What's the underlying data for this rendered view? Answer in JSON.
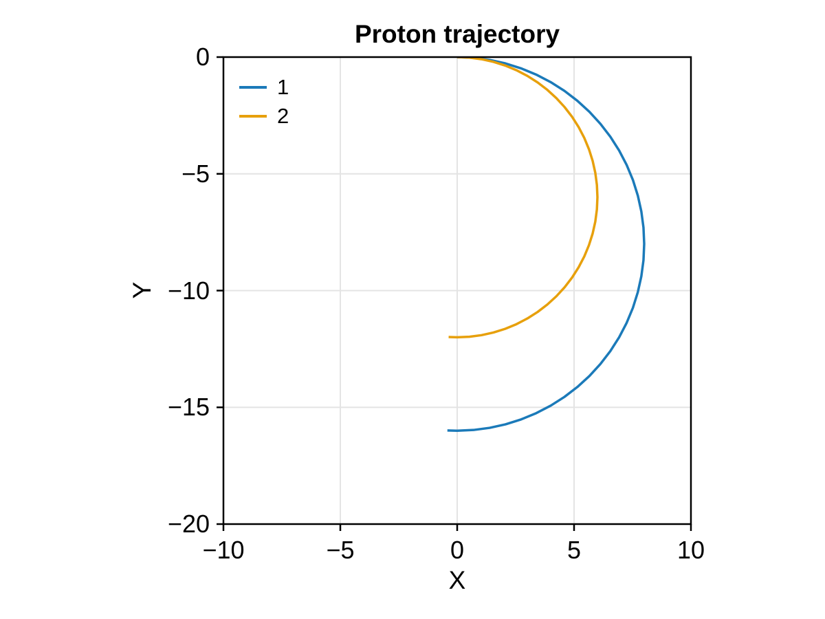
{
  "chart_data": {
    "type": "line",
    "title": "Proton trajectory",
    "xlabel": "X",
    "ylabel": "Y",
    "xlim": [
      -10,
      10
    ],
    "ylim": [
      -20,
      0
    ],
    "x_ticks": [
      -10,
      -5,
      0,
      5,
      10
    ],
    "x_tick_labels": [
      "−10",
      "−5",
      "0",
      "5",
      "10"
    ],
    "y_ticks": [
      0,
      -5,
      -10,
      -15,
      -20
    ],
    "y_tick_labels": [
      "0",
      "−5",
      "−10",
      "−15",
      "−20"
    ],
    "grid": true,
    "grid_color": "#e4e4e4",
    "frame_color": "#000000",
    "background_color": "#ffffff",
    "legend_position": "top-left-inside",
    "legend_frame": false,
    "series": [
      {
        "name": "1",
        "color": "#1b7ab9",
        "shape": "circular arc, radius 8, center (0,-8), starts at (0,0) moving +x, curves clockwise through (8,-8) to (0,-16), slightly overshooting past half turn",
        "points": [
          [
            0,
            0
          ],
          [
            0.698,
            -0.03
          ],
          [
            1.389,
            -0.122
          ],
          [
            2.071,
            -0.273
          ],
          [
            2.736,
            -0.483
          ],
          [
            3.381,
            -0.75
          ],
          [
            4,
            -1.072
          ],
          [
            4.589,
            -1.447
          ],
          [
            5.142,
            -1.872
          ],
          [
            5.657,
            -2.343
          ],
          [
            6.128,
            -2.858
          ],
          [
            6.553,
            -3.411
          ],
          [
            6.928,
            -4
          ],
          [
            7.25,
            -4.619
          ],
          [
            7.518,
            -5.264
          ],
          [
            7.727,
            -5.929
          ],
          [
            7.878,
            -6.611
          ],
          [
            7.97,
            -7.302
          ],
          [
            8,
            -8
          ],
          [
            7.97,
            -8.698
          ],
          [
            7.878,
            -9.389
          ],
          [
            7.727,
            -10.071
          ],
          [
            7.518,
            -10.736
          ],
          [
            7.25,
            -11.381
          ],
          [
            6.928,
            -12
          ],
          [
            6.553,
            -12.589
          ],
          [
            6.128,
            -13.142
          ],
          [
            5.657,
            -13.657
          ],
          [
            5.142,
            -14.128
          ],
          [
            4.589,
            -14.553
          ],
          [
            4,
            -14.928
          ],
          [
            3.381,
            -15.25
          ],
          [
            2.736,
            -15.517
          ],
          [
            2.071,
            -15.727
          ],
          [
            1.389,
            -15.878
          ],
          [
            0.698,
            -15.97
          ],
          [
            0,
            -16
          ],
          [
            -0.419,
            -15.989
          ]
        ]
      },
      {
        "name": "2",
        "color": "#e7a00c",
        "shape": "circular arc, radius 6, center (0,-6), starts at (0,0) moving +x, curves clockwise through (6,-6) to (0,-12), slightly overshooting past half turn",
        "points": [
          [
            0,
            0
          ],
          [
            0.523,
            -0.023
          ],
          [
            1.042,
            -0.091
          ],
          [
            1.553,
            -0.204
          ],
          [
            2.052,
            -0.362
          ],
          [
            2.536,
            -0.562
          ],
          [
            3,
            -0.804
          ],
          [
            3.442,
            -1.085
          ],
          [
            3.857,
            -1.404
          ],
          [
            4.243,
            -1.757
          ],
          [
            4.596,
            -2.143
          ],
          [
            4.915,
            -2.558
          ],
          [
            5.196,
            -3
          ],
          [
            5.438,
            -3.464
          ],
          [
            5.638,
            -3.948
          ],
          [
            5.796,
            -4.447
          ],
          [
            5.909,
            -4.958
          ],
          [
            5.977,
            -5.477
          ],
          [
            6,
            -6
          ],
          [
            5.977,
            -6.523
          ],
          [
            5.909,
            -7.042
          ],
          [
            5.796,
            -7.553
          ],
          [
            5.638,
            -8.052
          ],
          [
            5.438,
            -8.536
          ],
          [
            5.196,
            -9
          ],
          [
            4.915,
            -9.442
          ],
          [
            4.596,
            -9.857
          ],
          [
            4.243,
            -10.243
          ],
          [
            3.857,
            -10.596
          ],
          [
            3.442,
            -10.915
          ],
          [
            3,
            -11.196
          ],
          [
            2.536,
            -11.438
          ],
          [
            2.052,
            -11.638
          ],
          [
            1.553,
            -11.796
          ],
          [
            1.042,
            -11.909
          ],
          [
            0.523,
            -11.977
          ],
          [
            0,
            -12
          ],
          [
            -0.366,
            -11.989
          ]
        ]
      }
    ]
  }
}
